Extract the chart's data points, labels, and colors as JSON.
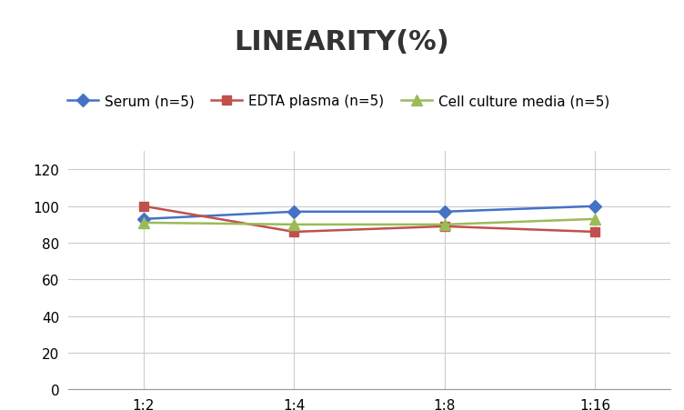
{
  "title": "LINEARITY(%)",
  "x_labels": [
    "1:2",
    "1:4",
    "1:8",
    "1:16"
  ],
  "series": [
    {
      "label": "Serum (n=5)",
      "values": [
        93,
        97,
        97,
        100
      ],
      "color": "#4472C4",
      "marker": "D",
      "markersize": 7,
      "linewidth": 1.8
    },
    {
      "label": "EDTA plasma (n=5)",
      "values": [
        100,
        86,
        89,
        86
      ],
      "color": "#C0504D",
      "marker": "s",
      "markersize": 7,
      "linewidth": 1.8
    },
    {
      "label": "Cell culture media (n=5)",
      "values": [
        91,
        90,
        90,
        93
      ],
      "color": "#9BBB59",
      "marker": "^",
      "markersize": 8,
      "linewidth": 1.8
    }
  ],
  "ylim": [
    0,
    130
  ],
  "yticks": [
    0,
    20,
    40,
    60,
    80,
    100,
    120
  ],
  "background_color": "#FFFFFF",
  "grid_color": "#CCCCCC",
  "title_fontsize": 22,
  "legend_fontsize": 11,
  "tick_fontsize": 11
}
